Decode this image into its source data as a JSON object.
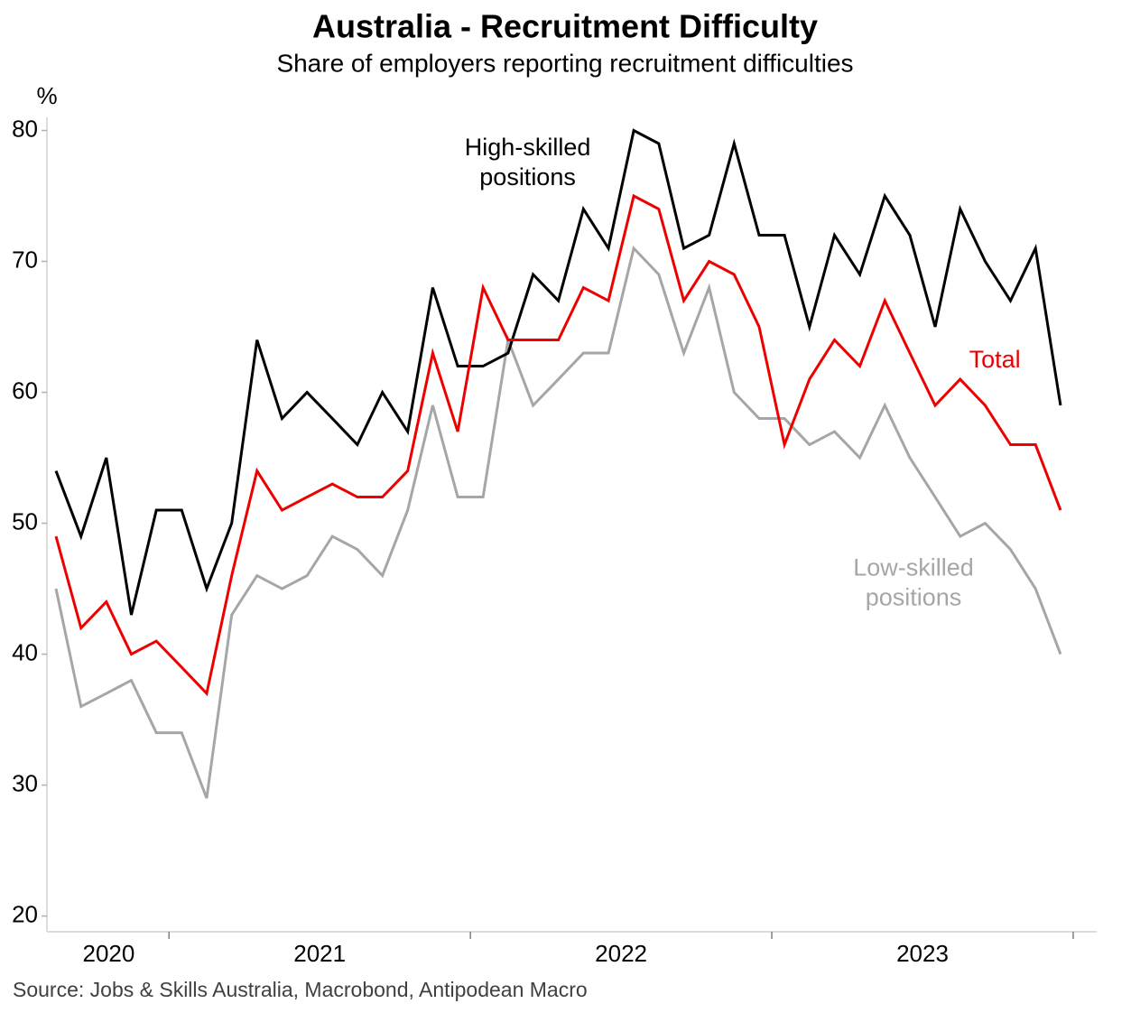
{
  "chart_data": {
    "type": "line",
    "title": "Australia - Recruitment Difficulty",
    "subtitle": "Share of employers reporting recruitment difficulties",
    "y_unit": "%",
    "source": "Source: Jobs & Skills Australia, Macrobond, Antipodean Macro",
    "x": [
      2020.625,
      2020.708,
      2020.792,
      2020.875,
      2020.958,
      2021.042,
      2021.125,
      2021.208,
      2021.292,
      2021.375,
      2021.458,
      2021.542,
      2021.625,
      2021.708,
      2021.792,
      2021.875,
      2021.958,
      2022.042,
      2022.125,
      2022.208,
      2022.292,
      2022.375,
      2022.458,
      2022.542,
      2022.625,
      2022.708,
      2022.792,
      2022.875,
      2022.958,
      2023.042,
      2023.125,
      2023.208,
      2023.292,
      2023.375,
      2023.458,
      2023.542,
      2023.625,
      2023.708,
      2023.792,
      2023.875,
      2023.958
    ],
    "series": [
      {
        "name": "High-skilled positions",
        "color": "#000000",
        "values": [
          54,
          49,
          55,
          43,
          51,
          51,
          45,
          50,
          64,
          58,
          60,
          58,
          56,
          60,
          57,
          68,
          62,
          62,
          63,
          69,
          67,
          74,
          71,
          80,
          79,
          71,
          72,
          79,
          72,
          72,
          65,
          72,
          69,
          75,
          72,
          65,
          74,
          70,
          67,
          71,
          59
        ]
      },
      {
        "name": "Total",
        "color": "#ee0000",
        "values": [
          49,
          42,
          44,
          40,
          41,
          39,
          37,
          46,
          54,
          51,
          52,
          53,
          52,
          52,
          54,
          63,
          57,
          68,
          64,
          64,
          64,
          68,
          67,
          75,
          74,
          67,
          70,
          69,
          65,
          56,
          61,
          64,
          62,
          67,
          63,
          59,
          61,
          59,
          56,
          56,
          51
        ]
      },
      {
        "name": "Low-skilled positions",
        "color": "#a6a6a6",
        "values": [
          45,
          36,
          37,
          38,
          34,
          34,
          29,
          43,
          46,
          45,
          46,
          49,
          48,
          46,
          51,
          59,
          52,
          52,
          64,
          59,
          61,
          63,
          63,
          71,
          69,
          63,
          68,
          60,
          58,
          58,
          56,
          57,
          55,
          59,
          55,
          52,
          49,
          50,
          48,
          45,
          40
        ]
      }
    ],
    "annotations": [
      {
        "lines": [
          "High-skilled",
          "positions"
        ],
        "color": "#000000",
        "x": 2022.19,
        "y": 78.6
      },
      {
        "lines": [
          "Total"
        ],
        "color": "#ee0000",
        "x": 2023.74,
        "y": 62.4
      },
      {
        "lines": [
          "Low-skilled",
          "positions"
        ],
        "color": "#a6a6a6",
        "x": 2023.47,
        "y": 46.5
      }
    ],
    "xlim": [
      2020.595,
      2024.078
    ],
    "xticks": [
      2021,
      2022,
      2023,
      2024
    ],
    "year_labels": [
      {
        "value": 2020.8,
        "label": "2020"
      },
      {
        "value": 2021.5,
        "label": "2021"
      },
      {
        "value": 2022.5,
        "label": "2022"
      },
      {
        "value": 2023.5,
        "label": "2023"
      }
    ],
    "ylim": [
      18.8,
      81
    ],
    "yticks": [
      20,
      30,
      40,
      50,
      60,
      70,
      80
    ]
  }
}
